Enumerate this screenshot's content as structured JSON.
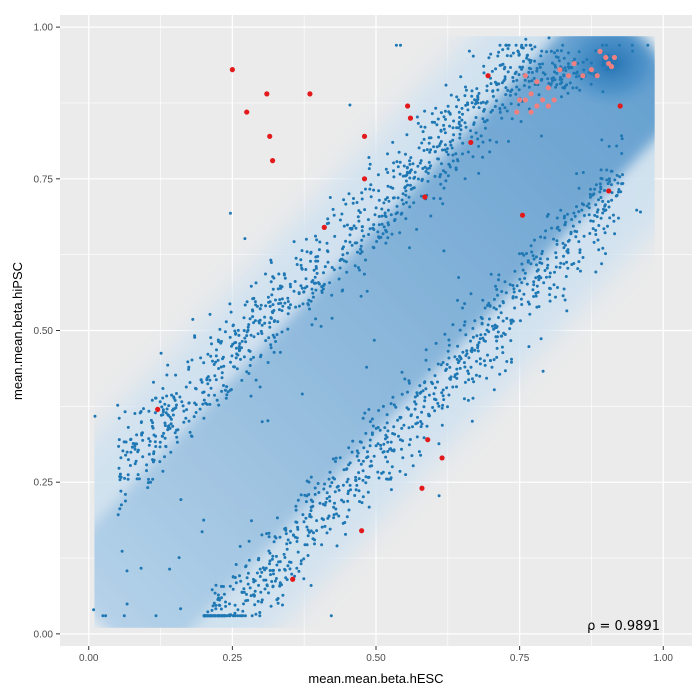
{
  "chart_data": {
    "type": "scatter",
    "title": "",
    "xlabel": "mean.mean.beta.hESC",
    "ylabel": "mean.mean.beta.hiPSC",
    "xlim": [
      -0.05,
      1.05
    ],
    "ylim": [
      -0.02,
      1.02
    ],
    "x_ticks": [
      0.0,
      0.25,
      0.5,
      0.75,
      1.0
    ],
    "x_tick_labels": [
      "0.00",
      "0.25",
      "0.50",
      "0.75",
      "1.00"
    ],
    "y_ticks": [
      0.0,
      0.25,
      0.5,
      0.75,
      1.0
    ],
    "y_tick_labels": [
      "0.00",
      "0.25",
      "0.50",
      "0.75",
      "1.00"
    ],
    "grid": true,
    "annotation": "ρ = 0.9891",
    "colors": {
      "panel": "#ebebeb",
      "grid": "#ffffff",
      "density_light": "#d6e6f2",
      "density_dark": "#2b7bba",
      "points": "#1f78b4",
      "highlight": "#e31a1c",
      "highlight_light": "#f08080"
    },
    "background_density": {
      "description_free": true,
      "diagonal_from": [
        0.02,
        0.02
      ],
      "diagonal_to": [
        0.97,
        0.97
      ],
      "hotspot": [
        0.91,
        0.94
      ]
    },
    "series": [
      {
        "color": "#e31a1c",
        "points": [
          [
            0.25,
            0.93
          ],
          [
            0.31,
            0.89
          ],
          [
            0.385,
            0.89
          ],
          [
            0.275,
            0.86
          ],
          [
            0.315,
            0.82
          ],
          [
            0.32,
            0.78
          ],
          [
            0.48,
            0.82
          ],
          [
            0.555,
            0.87
          ],
          [
            0.56,
            0.85
          ],
          [
            0.48,
            0.75
          ],
          [
            0.585,
            0.72
          ],
          [
            0.41,
            0.67
          ],
          [
            0.665,
            0.81
          ],
          [
            0.695,
            0.92
          ],
          [
            0.755,
            0.69
          ],
          [
            0.905,
            0.73
          ],
          [
            0.925,
            0.87
          ],
          [
            0.12,
            0.37
          ],
          [
            0.59,
            0.32
          ],
          [
            0.615,
            0.29
          ],
          [
            0.58,
            0.24
          ],
          [
            0.475,
            0.17
          ],
          [
            0.355,
            0.09
          ]
        ]
      },
      {
        "color": "#f08080",
        "points": [
          [
            0.76,
            0.92
          ],
          [
            0.77,
            0.89
          ],
          [
            0.78,
            0.91
          ],
          [
            0.79,
            0.88
          ],
          [
            0.8,
            0.9
          ],
          [
            0.81,
            0.88
          ],
          [
            0.82,
            0.93
          ],
          [
            0.835,
            0.92
          ],
          [
            0.845,
            0.94
          ],
          [
            0.86,
            0.92
          ],
          [
            0.875,
            0.93
          ],
          [
            0.885,
            0.92
          ],
          [
            0.89,
            0.96
          ],
          [
            0.9,
            0.95
          ],
          [
            0.905,
            0.94
          ],
          [
            0.91,
            0.935
          ],
          [
            0.915,
            0.95
          ],
          [
            0.77,
            0.86
          ],
          [
            0.745,
            0.86
          ],
          [
            0.78,
            0.87
          ],
          [
            0.75,
            0.88
          ],
          [
            0.8,
            0.87
          ],
          [
            0.76,
            0.88
          ]
        ]
      }
    ]
  }
}
